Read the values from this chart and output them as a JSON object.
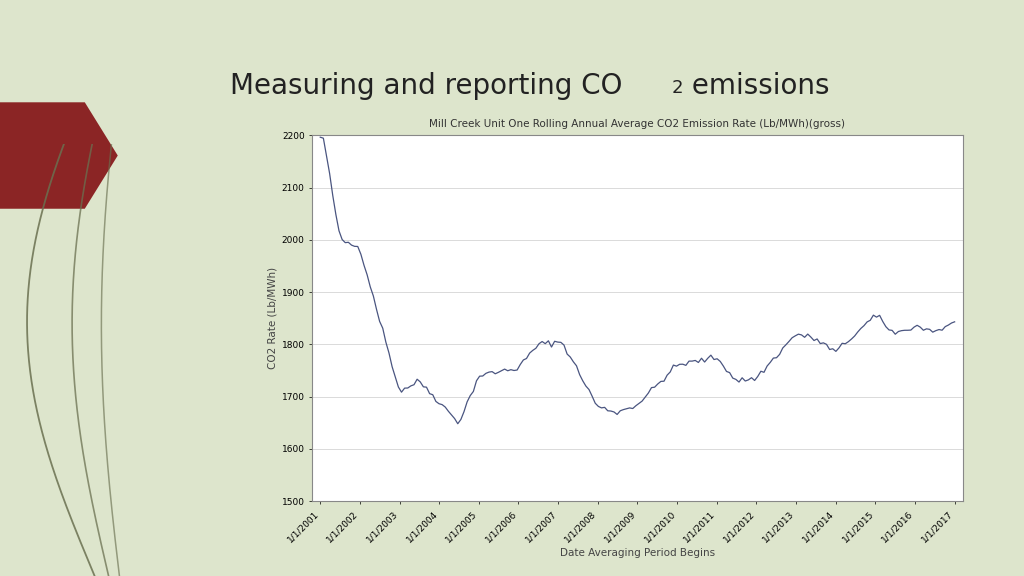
{
  "title_part1": "Measuring and reporting CO",
  "title_sub": "2",
  "title_part2": " emissions",
  "chart_title": "Mill Creek Unit One Rolling Annual Average CO2 Emission Rate (Lb/MWh)(gross)",
  "xlabel": "Date Averaging Period Begins",
  "ylabel": "CO2 Rate (Lb/MWh)",
  "slide_bg": "#dde5cc",
  "chart_bg": "#ffffff",
  "chart_border": "#aaaaaa",
  "line_color": "#4a5580",
  "arrow_color": "#8b2525",
  "curve_color": "#6a7050",
  "ylim": [
    1500,
    2200
  ],
  "yticks": [
    1500,
    1600,
    1700,
    1800,
    1900,
    2000,
    2100,
    2200
  ],
  "x_labels": [
    "1/1/2001",
    "1/1/2002",
    "1/1/2003",
    "1/1/2004",
    "1/1/2005",
    "1/1/2006",
    "1/1/2007",
    "1/1/2008",
    "1/1/2009",
    "1/1/2010",
    "1/1/2011",
    "1/1/2012",
    "1/1/2013",
    "1/1/2014",
    "1/1/2015",
    "1/1/2016",
    "1/1/2017"
  ]
}
